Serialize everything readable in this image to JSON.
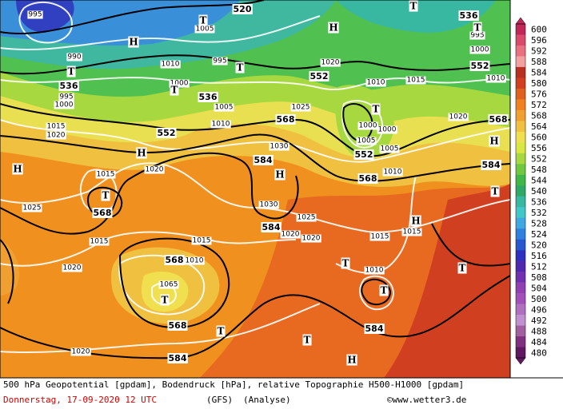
{
  "caption": "500 hPa Geopotential [gpdam], Bodendruck [hPa], relative Topographie H500-H1000 [gpdam]",
  "date": "Donnerstag, 17-09-2020  12 UTC",
  "model": "(GFS)",
  "run": "(Analyse)",
  "credit": "©www.wetter3.de",
  "colorbar": {
    "levels": [
      600,
      596,
      592,
      588,
      584,
      580,
      576,
      572,
      568,
      564,
      560,
      556,
      552,
      548,
      544,
      540,
      536,
      532,
      528,
      524,
      520,
      516,
      512,
      508,
      504,
      500,
      496,
      492,
      488,
      484,
      480
    ],
    "colors": [
      "#c0285a",
      "#d94a6b",
      "#e8707f",
      "#f2a0a0",
      "#b83020",
      "#d04020",
      "#e06020",
      "#f08020",
      "#f0a030",
      "#f0c040",
      "#f0e050",
      "#d8e840",
      "#a8d840",
      "#70c840",
      "#40b848",
      "#30a868",
      "#38b8a0",
      "#40c8c8",
      "#40a8e0",
      "#3080e0",
      "#2858d0",
      "#3030c0",
      "#5028b0",
      "#7030b0",
      "#9040b0",
      "#a050b8",
      "#b070c0",
      "#c090d0",
      "#a060a0",
      "#803080",
      "#601860"
    ]
  },
  "geopotential_labels": [
    "520",
    "536",
    "552",
    "552",
    "536",
    "536",
    "568",
    "552",
    "568",
    "552",
    "584",
    "584",
    "568",
    "568",
    "584",
    "568",
    "568",
    "584",
    "584"
  ],
  "pressure_labels": [
    "995",
    "1005",
    "990",
    "1010",
    "995",
    "1020",
    "1000",
    "1010",
    "1015",
    "1010",
    "995",
    "1000",
    "1025",
    "1005",
    "1010",
    "1020",
    "1000",
    "1000",
    "1005",
    "1030",
    "1005",
    "1020",
    "1010",
    "1015",
    "1025",
    "1030",
    "1025",
    "1020",
    "1020",
    "1015",
    "1015",
    "1015",
    "1015",
    "1010",
    "1020",
    "1010",
    "1065",
    "1020",
    "995",
    "1000",
    "1020",
    "1015"
  ],
  "pressure_centers": [
    "T",
    "H",
    "T",
    "T",
    "H",
    "T",
    "T",
    "T",
    "T",
    "H",
    "H",
    "H",
    "T",
    "H",
    "T",
    "H",
    "T",
    "T",
    "T",
    "T",
    "T",
    "T",
    "H"
  ]
}
